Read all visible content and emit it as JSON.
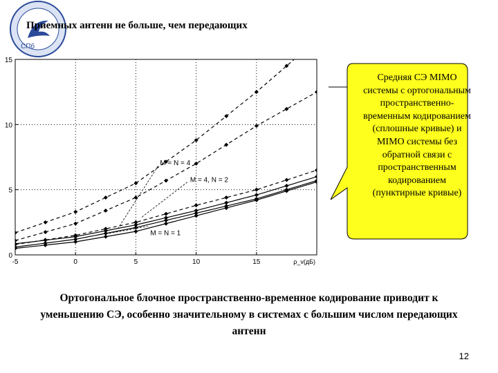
{
  "slide": {
    "title": "Приемных антенн не больше, чем передающих",
    "page_number": "12",
    "conclusion": "Ортогональное блочное пространственно-временное кодирование приводит к уменьшению СЭ, особенно значительному в системах с большим числом передающих антенн",
    "callout_text": "Средняя СЭ MIMO системы с ортогональным пространственно-временным кодированием (сплошные кривые) и MIMO системы без обратной связи с пространственным кодированием (пунктирные кривые)",
    "callout_color": "#ffff1e"
  },
  "chart_data": {
    "type": "line",
    "xlabel": "ρ_v(дБ)",
    "ylabel": "",
    "xlim": [
      -5,
      20
    ],
    "ylim": [
      0,
      15
    ],
    "xticks": [
      "-5",
      "0",
      "5",
      "10",
      "15"
    ],
    "yticks": [
      "0",
      "5",
      "10",
      "15"
    ],
    "grid": "dotted",
    "annotations": [
      {
        "text": "M = N = 4",
        "x": 7.0,
        "y": 6.9
      },
      {
        "text": "M = 4, N = 2",
        "x": 9.5,
        "y": 5.6
      },
      {
        "text": "M = N = 1",
        "x": 6.2,
        "y": 1.5
      }
    ],
    "series": [
      {
        "style": "dashed",
        "x": [
          -5,
          0,
          5,
          10,
          15,
          20
        ],
        "y": [
          1.7,
          3.3,
          5.5,
          8.8,
          12.5,
          16.5
        ]
      },
      {
        "style": "dashed",
        "x": [
          -5,
          0,
          5,
          10,
          15,
          20
        ],
        "y": [
          1.1,
          2.4,
          4.4,
          7.0,
          9.9,
          12.5
        ]
      },
      {
        "style": "dashed",
        "x": [
          -5,
          0,
          5,
          10,
          15,
          20
        ],
        "y": [
          0.8,
          1.5,
          2.5,
          3.8,
          5.0,
          6.5
        ]
      },
      {
        "style": "solid",
        "x": [
          -5,
          0,
          5,
          10,
          15,
          20
        ],
        "y": [
          0.85,
          1.4,
          2.3,
          3.4,
          4.6,
          6.0
        ]
      },
      {
        "style": "solid",
        "x": [
          -5,
          0,
          5,
          10,
          15,
          20
        ],
        "y": [
          0.6,
          1.2,
          2.1,
          3.2,
          4.3,
          5.7
        ]
      },
      {
        "style": "solid",
        "x": [
          -5,
          0,
          5,
          10,
          15,
          20
        ],
        "y": [
          0.5,
          1.0,
          1.8,
          3.0,
          4.2,
          5.6
        ]
      }
    ]
  }
}
